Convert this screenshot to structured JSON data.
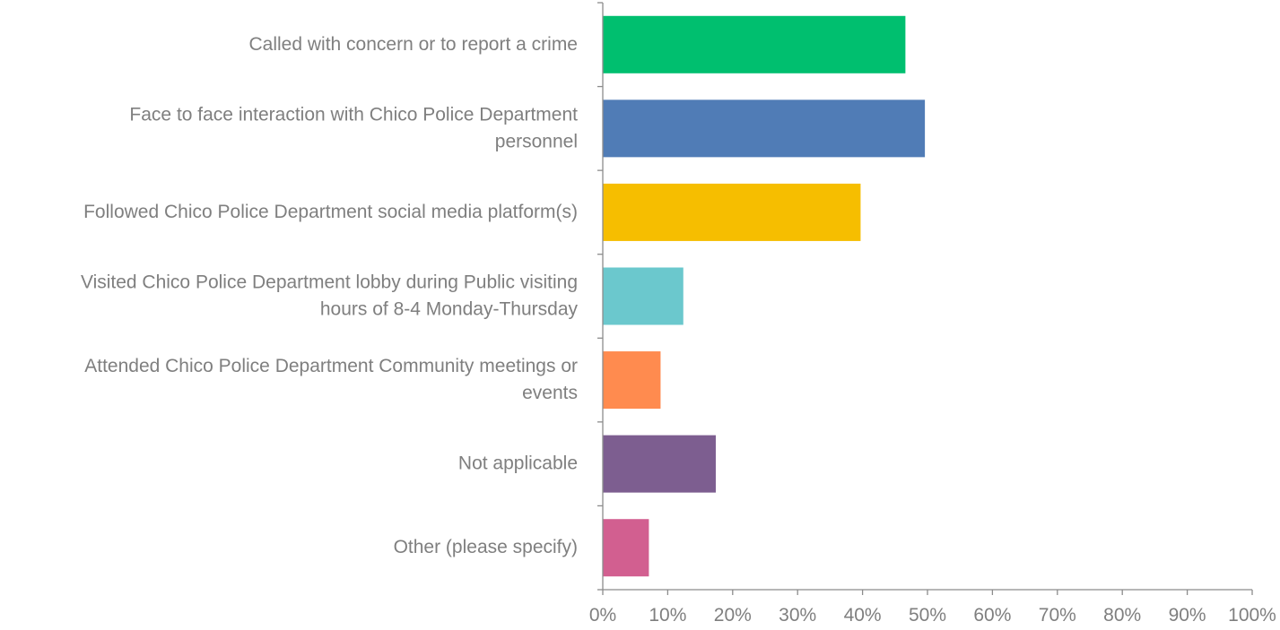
{
  "chart_data": {
    "type": "bar",
    "orientation": "horizontal",
    "title": "",
    "xlabel": "",
    "ylabel": "",
    "xlim": [
      0,
      100
    ],
    "x_unit": "%",
    "grid": false,
    "legend": "none",
    "categories": [
      [
        "Called with concern or to report a crime"
      ],
      [
        "Face to face interaction with Chico Police Department",
        "personnel"
      ],
      [
        "Followed Chico Police Department social media platform(s)"
      ],
      [
        "Visited Chico Police Department lobby during Public visiting",
        "hours of 8-4 Monday-Thursday"
      ],
      [
        "Attended Chico Police Department Community meetings or",
        "events"
      ],
      [
        "Not applicable"
      ],
      [
        "Other (please specify)"
      ]
    ],
    "values": [
      46.6,
      49.6,
      39.7,
      12.4,
      8.9,
      17.4,
      7.1
    ],
    "colors": [
      "#00bf6f",
      "#507cb6",
      "#f6be00",
      "#6bc8cd",
      "#ff8b4f",
      "#7d5e90",
      "#d25f90"
    ],
    "ticks": [
      "0%",
      "10%",
      "20%",
      "30%",
      "40%",
      "50%",
      "60%",
      "70%",
      "80%",
      "90%",
      "100%"
    ]
  }
}
